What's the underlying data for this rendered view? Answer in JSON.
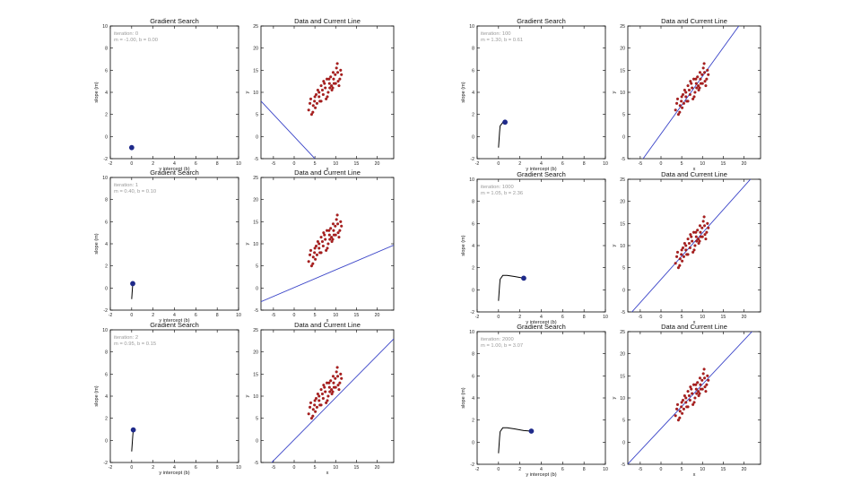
{
  "slide": {
    "background": "#ffffff"
  },
  "colors": {
    "axis": "#000000",
    "path": "#000000",
    "current_point": "#1f2a8a",
    "fit_line": "#3a44c8",
    "data_points": "#b01e1e",
    "iteration_text": "#9a9a9a"
  },
  "gradient_search_common": {
    "title": "Gradient Search",
    "xlabel": "y intercept (b)",
    "ylabel": "slope (m)",
    "xlim": [
      -2,
      10
    ],
    "ylim": [
      -2,
      10
    ],
    "xticks": [
      "-2",
      "0",
      "2",
      "4",
      "6",
      "8",
      "10"
    ],
    "yticks": [
      "-2",
      "0",
      "2",
      "4",
      "6",
      "8",
      "10"
    ]
  },
  "data_line_common": {
    "title": "Data and Current Line",
    "xlabel": "x",
    "ylabel": "y",
    "xlim": [
      -8,
      24
    ],
    "ylim": [
      -5,
      25
    ],
    "xticks": [
      "-5",
      "0",
      "5",
      "10",
      "15",
      "20"
    ],
    "yticks": [
      "-5",
      "0",
      "5",
      "10",
      "15",
      "20",
      "25"
    ]
  },
  "chart_data": [
    {
      "type": "line",
      "title": "Gradient Search",
      "iteration_text": "iteration: 0",
      "params_text": "m = -1.00, b = 0.00",
      "path": {
        "x": [
          0.0
        ],
        "y": [
          -1.0
        ]
      },
      "current": {
        "b": 0.0,
        "m": -1.0
      }
    },
    {
      "type": "scatter",
      "title": "Data and Current Line",
      "line": {
        "m": -1.0,
        "b": 0.0
      }
    },
    {
      "type": "line",
      "title": "Gradient Search",
      "iteration_text": "iteration: 1",
      "params_text": "m = 0.40, b = 0.10",
      "path": {
        "x": [
          0.0,
          0.1
        ],
        "y": [
          -1.0,
          0.4
        ]
      },
      "current": {
        "b": 0.1,
        "m": 0.4
      }
    },
    {
      "type": "scatter",
      "title": "Data and Current Line",
      "line": {
        "m": 0.4,
        "b": 0.1
      }
    },
    {
      "type": "line",
      "title": "Gradient Search",
      "iteration_text": "iteration: 2",
      "params_text": "m = 0.95, b = 0.15",
      "path": {
        "x": [
          0.0,
          0.1,
          0.15
        ],
        "y": [
          -1.0,
          0.4,
          0.95
        ]
      },
      "current": {
        "b": 0.15,
        "m": 0.95
      }
    },
    {
      "type": "scatter",
      "title": "Data and Current Line",
      "line": {
        "m": 0.95,
        "b": 0.15
      }
    },
    {
      "type": "line",
      "title": "Gradient Search",
      "iteration_text": "iteration: 100",
      "params_text": "m = 1.30, b = 0.61",
      "path": {
        "x": [
          0.0,
          0.1,
          0.15,
          0.4,
          0.61
        ],
        "y": [
          -1.0,
          0.4,
          0.95,
          1.28,
          1.3
        ]
      },
      "current": {
        "b": 0.61,
        "m": 1.3
      }
    },
    {
      "type": "scatter",
      "title": "Data and Current Line",
      "line": {
        "m": 1.3,
        "b": 0.61
      }
    },
    {
      "type": "line",
      "title": "Gradient Search",
      "iteration_text": "iteration: 1000",
      "params_text": "m = 1.05, b = 2.36",
      "path": {
        "x": [
          0.0,
          0.1,
          0.15,
          0.4,
          0.8,
          1.5,
          2.36
        ],
        "y": [
          -1.0,
          0.4,
          0.95,
          1.3,
          1.3,
          1.2,
          1.05
        ]
      },
      "current": {
        "b": 2.36,
        "m": 1.05
      }
    },
    {
      "type": "scatter",
      "title": "Data and Current Line",
      "line": {
        "m": 1.05,
        "b": 2.36
      }
    },
    {
      "type": "line",
      "title": "Gradient Search",
      "iteration_text": "iteration: 2000",
      "params_text": "m = 1.00, b = 3.07",
      "path": {
        "x": [
          0.0,
          0.1,
          0.15,
          0.4,
          0.8,
          1.5,
          2.36,
          3.07
        ],
        "y": [
          -1.0,
          0.4,
          0.95,
          1.3,
          1.3,
          1.2,
          1.05,
          1.0
        ]
      },
      "current": {
        "b": 3.07,
        "m": 1.0
      }
    },
    {
      "type": "scatter",
      "title": "Data and Current Line",
      "line": {
        "m": 1.0,
        "b": 3.07
      }
    }
  ],
  "dataset": {
    "x": [
      3.5,
      4.0,
      4.5,
      5.0,
      5.5,
      6.0,
      6.5,
      7.0,
      7.5,
      8.0,
      8.5,
      9.0,
      9.5,
      10.0,
      10.5,
      11.0,
      3.8,
      4.6,
      5.3,
      6.2,
      6.8,
      7.3,
      8.2,
      8.8,
      9.3,
      9.9,
      10.6,
      11.2,
      4.2,
      5.7,
      6.5,
      7.7,
      8.4,
      9.1,
      10.2,
      10.8,
      5.1,
      6.0,
      7.1,
      8.6,
      9.6,
      10.4,
      4.9,
      7.9,
      9.4,
      11.4
    ],
    "y": [
      6.0,
      8.5,
      5.5,
      9.0,
      7.5,
      10.0,
      8.0,
      9.5,
      11.0,
      9.0,
      12.0,
      11.5,
      13.0,
      12.0,
      14.5,
      13.0,
      7.5,
      7.0,
      9.5,
      8.0,
      10.5,
      12.0,
      10.0,
      13.5,
      11.0,
      14.0,
      12.5,
      15.0,
      5.0,
      10.5,
      11.5,
      8.5,
      13.0,
      10.5,
      15.5,
      11.5,
      6.5,
      9.0,
      12.5,
      11.0,
      12.0,
      16.5,
      8.0,
      13.0,
      14.5,
      14.0
    ]
  }
}
